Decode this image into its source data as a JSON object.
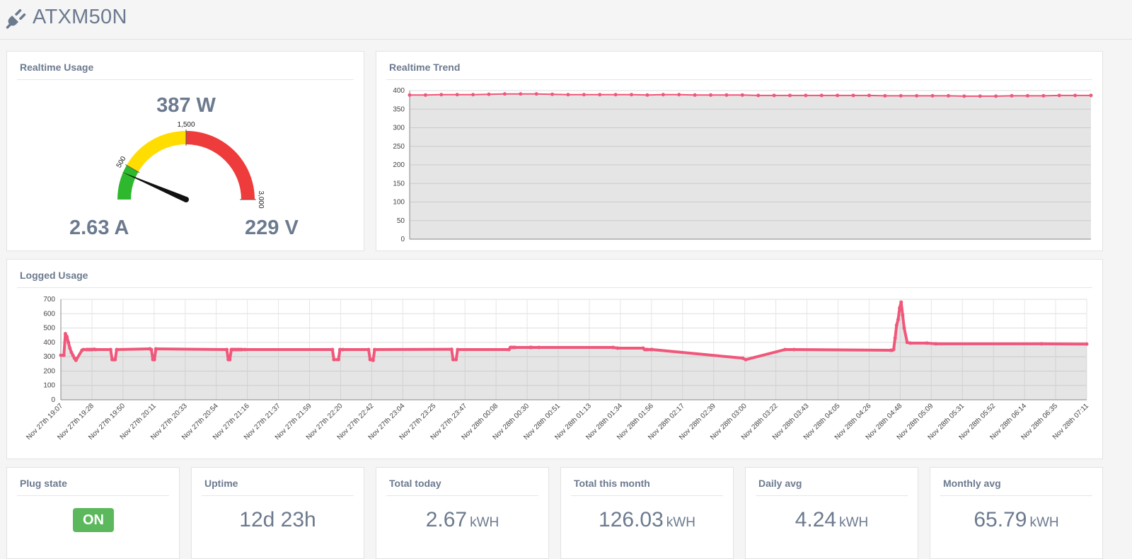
{
  "header": {
    "title": "ATXM50N",
    "icon": "plug-icon"
  },
  "realtime_usage": {
    "title": "Realtime Usage",
    "power": "387 W",
    "current": "2.63 A",
    "voltage": "229 V",
    "gauge": {
      "value": 387,
      "min": 0,
      "max": 3000,
      "tick_labels": [
        "500",
        "1,500",
        "3,000"
      ],
      "bands": [
        {
          "from": 0,
          "to": 500,
          "color": "#2eb82e"
        },
        {
          "from": 500,
          "to": 1500,
          "color": "#ffdd00"
        },
        {
          "from": 1500,
          "to": 3000,
          "color": "#ee3b3b"
        }
      ]
    }
  },
  "realtime_trend": {
    "title": "Realtime Trend"
  },
  "logged_usage": {
    "title": "Logged Usage"
  },
  "chart_data": [
    {
      "type": "area",
      "ylim": [
        0,
        400
      ],
      "yticks": [
        "0",
        "50",
        "100",
        "150",
        "200",
        "250",
        "300",
        "350",
        "400"
      ],
      "grid": true,
      "color": "#f0577a",
      "values": [
        388,
        388,
        389,
        389,
        389,
        390,
        391,
        391,
        391,
        390,
        389,
        389,
        389,
        389,
        389,
        388,
        389,
        389,
        388,
        388,
        388,
        388,
        387,
        387,
        387,
        387,
        387,
        387,
        387,
        387,
        386,
        386,
        386,
        386,
        386,
        385,
        385,
        385,
        386,
        386,
        386,
        387,
        387,
        387
      ]
    },
    {
      "type": "area",
      "ylim": [
        0,
        700
      ],
      "yticks": [
        "0",
        "100",
        "200",
        "300",
        "400",
        "500",
        "600",
        "700"
      ],
      "grid": true,
      "color": "#f0577a",
      "categories": [
        "Nov 27th 19:07",
        "Nov 27th 19:28",
        "Nov 27th 19:50",
        "Nov 27th 20:11",
        "Nov 27th 20:33",
        "Nov 27th 20:54",
        "Nov 27th 21:16",
        "Nov 27th 21:37",
        "Nov 27th 21:59",
        "Nov 27th 22:20",
        "Nov 27th 22:42",
        "Nov 27th 23:04",
        "Nov 27th 23:25",
        "Nov 27th 23:47",
        "Nov 28th 00:08",
        "Nov 28th 00:30",
        "Nov 28th 00:51",
        "Nov 28th 01:13",
        "Nov 28th 01:34",
        "Nov 28th 01:56",
        "Nov 28th 02:17",
        "Nov 28th 02:39",
        "Nov 28th 03:00",
        "Nov 28th 03:22",
        "Nov 28th 03:43",
        "Nov 28th 04:05",
        "Nov 28th 04:26",
        "Nov 28th 04:48",
        "Nov 28th 05:09",
        "Nov 28th 05:31",
        "Nov 28th 05:52",
        "Nov 28th 06:14",
        "Nov 28th 06:35",
        "Nov 28th 07:11"
      ],
      "x": [
        0,
        2,
        3,
        4,
        5,
        6,
        7,
        8,
        9,
        10,
        14,
        15,
        17,
        18,
        19,
        20,
        21,
        22,
        23,
        33,
        34,
        35,
        36,
        37,
        59,
        60,
        61,
        62,
        63,
        110,
        111,
        112,
        113,
        114,
        115,
        116,
        117,
        118,
        119,
        120,
        122,
        180,
        181,
        184,
        185,
        187,
        204,
        205,
        206,
        207,
        208,
        259,
        260,
        262,
        263,
        297,
        298,
        299,
        300,
        301,
        311,
        312,
        317,
        366,
        369,
        386,
        387,
        388,
        389,
        391,
        392,
        452,
        454,
        480,
        486,
        550,
        551,
        552,
        553,
        554,
        555,
        556,
        557,
        558,
        559,
        561,
        563,
        574,
        580,
        650,
        680
      ],
      "values": [
        310,
        310,
        460,
        440,
        400,
        360,
        330,
        310,
        290,
        275,
        345,
        350,
        350,
        350,
        350,
        350,
        350,
        352,
        350,
        350,
        280,
        280,
        280,
        350,
        355,
        350,
        280,
        280,
        355,
        350,
        280,
        280,
        350,
        350,
        350,
        350,
        350,
        350,
        350,
        350,
        350,
        350,
        280,
        280,
        350,
        350,
        350,
        280,
        280,
        275,
        350,
        352,
        280,
        280,
        350,
        350,
        365,
        365,
        365,
        365,
        365,
        365,
        365,
        365,
        360,
        360,
        350,
        350,
        350,
        350,
        350,
        290,
        280,
        350,
        350,
        345,
        345,
        350,
        430,
        520,
        560,
        640,
        680,
        590,
        500,
        400,
        395,
        395,
        390,
        390,
        388
      ]
    }
  ],
  "stats": [
    {
      "label": "Plug state",
      "value": "ON",
      "unit": ""
    },
    {
      "label": "Uptime",
      "value": "12d 23h",
      "unit": ""
    },
    {
      "label": "Total today",
      "value": "2.67",
      "unit": "kWH"
    },
    {
      "label": "Total this month",
      "value": "126.03",
      "unit": "kWH"
    },
    {
      "label": "Daily avg",
      "value": "4.24",
      "unit": "kWH"
    },
    {
      "label": "Monthly avg",
      "value": "65.79",
      "unit": "kWH"
    }
  ]
}
